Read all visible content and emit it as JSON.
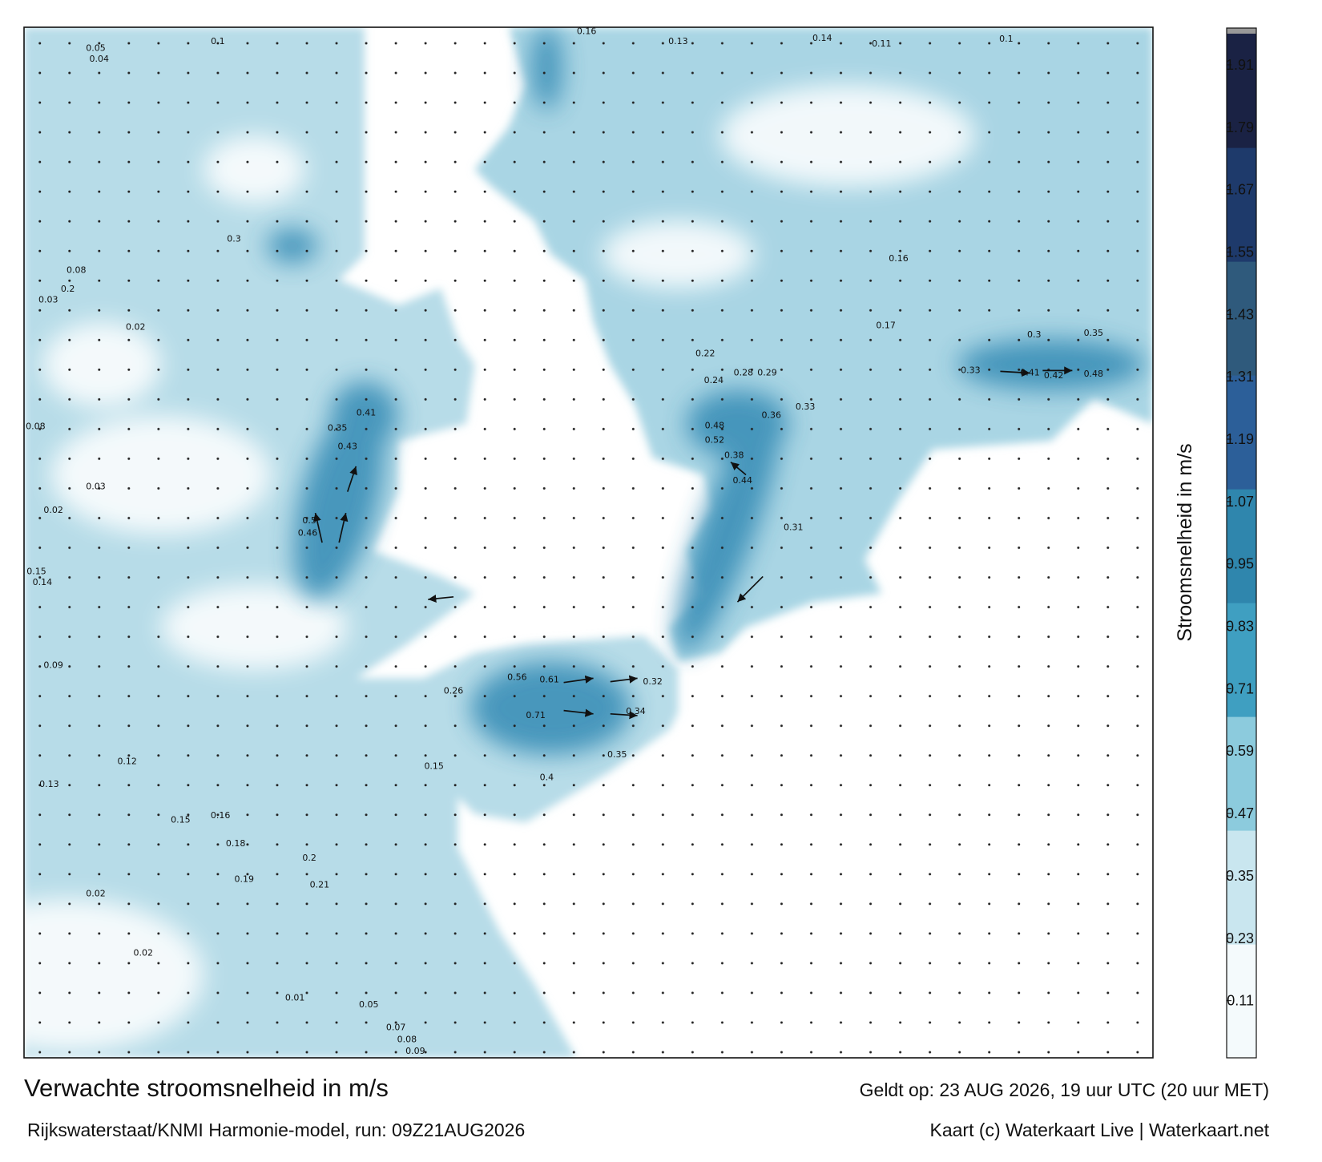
{
  "map": {
    "title": "Verwachte stroomsnelheid in m/s",
    "subtitle": "Rijkswaterstaat/KNMI Harmonie-model, run: 09Z21AUG2026",
    "valid": "Geldt op: 23 AUG 2026, 19 uur UTC (20 uur MET)",
    "credit": "Kaart (c) Waterkaart Live | Waterkaart.net",
    "colorbar": {
      "label": "Stroomsnelheid in m/s",
      "lim": [
        0,
        1.97
      ],
      "ticks": [
        0.11,
        0.23,
        0.35,
        0.47,
        0.59,
        0.71,
        0.83,
        0.95,
        1.07,
        1.19,
        1.31,
        1.43,
        1.55,
        1.67,
        1.79,
        1.91
      ],
      "colors": [
        "#f4fafc",
        "#c9e6ef",
        "#8ccbdd",
        "#3f9fc1",
        "#2f86ad",
        "#2c5f99",
        "#2f5a7c",
        "#1e3a6b",
        "#1a2244"
      ]
    },
    "labels": [
      "0.61",
      "0.56",
      "0.71",
      "0.5",
      "0.46",
      "0.43",
      "0.41",
      "0.35",
      "0.48",
      "0.52",
      "0.44",
      "0.38",
      "0.31",
      "0.33",
      "0.36",
      "0.29",
      "0.28",
      "0.24",
      "0.22",
      "0.41",
      "0.42",
      "0.48",
      "0.35",
      "0.3",
      "0.33",
      "0.16",
      "0.17",
      "0.13",
      "0.16",
      "0.14",
      "0.11",
      "0.1",
      "0.2",
      "0.21",
      "0.19",
      "0.18",
      "0.16",
      "0.15",
      "0.12",
      "0.13",
      "0.09",
      "0.02",
      "0.02",
      "0.01",
      "0.09",
      "0.08",
      "0.07",
      "0.05",
      "0.34",
      "0.32",
      "0.26",
      "0.15",
      "0.4",
      "0.35",
      "0.05",
      "0.04",
      "0.1",
      "0.3",
      "0.2",
      "0.08",
      "0.03",
      "0.02",
      "0.08",
      "0.03",
      "0.02",
      "0.15",
      "0.14"
    ]
  }
}
